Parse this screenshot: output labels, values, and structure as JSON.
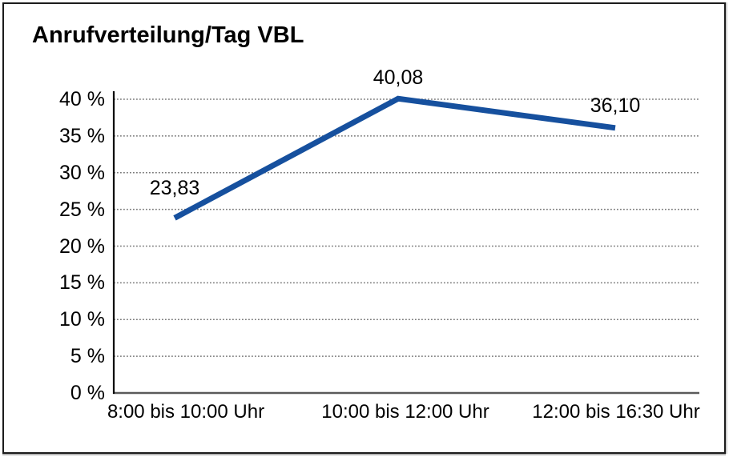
{
  "chart_data": {
    "type": "line",
    "title": "Anrufverteilung/Tag VBL",
    "categories": [
      "8:00 bis 10:00 Uhr",
      "10:00 bis 12:00 Uhr",
      "12:00 bis 16:30 Uhr"
    ],
    "values": [
      23.83,
      40.08,
      36.1
    ],
    "point_labels": [
      "23,83",
      "40,08",
      "36,10"
    ],
    "xlabel": "",
    "ylabel": "",
    "ylim": [
      0,
      40
    ],
    "ytick_step": 5,
    "ytick_labels": [
      "0 %",
      "5 %",
      "10 %",
      "15 %",
      "20 %",
      "25 %",
      "30 %",
      "35 %",
      "40 %"
    ],
    "grid": "horizontal-dotted",
    "legend": "none",
    "colors": {
      "line": "#16509e",
      "gridline": "#7a7a7a",
      "axis": "#000000",
      "baseline": "#5a5a5a",
      "text": "#000000"
    }
  }
}
